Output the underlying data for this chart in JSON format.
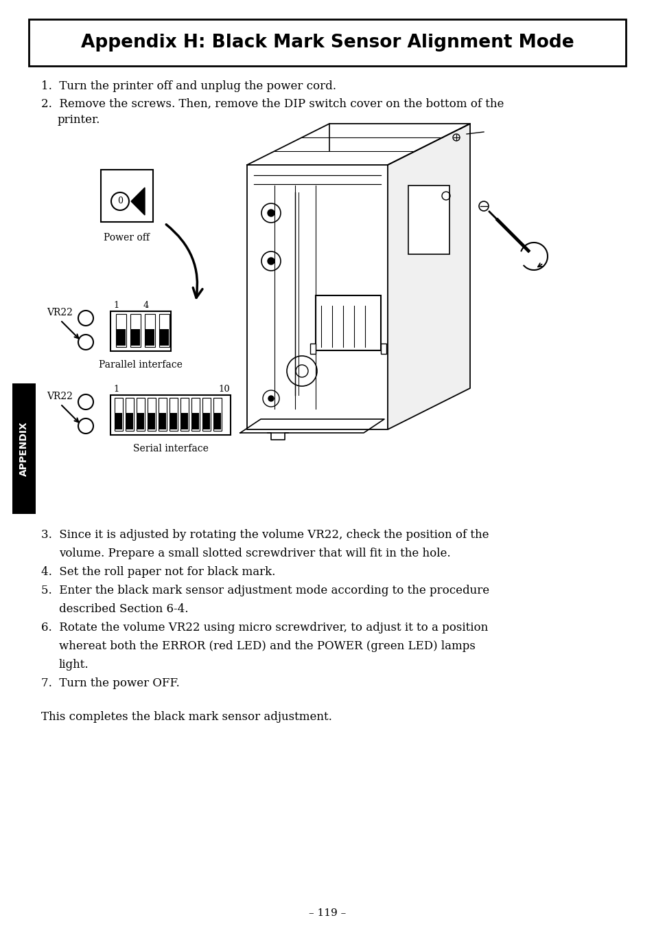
{
  "title": "Appendix H: Black Mark Sensor Alignment Mode",
  "bg_color": "#ffffff",
  "text_color": "#000000",
  "sidebar_text": "APPENDIX",
  "step1": "Turn the printer off and unplug the power cord.",
  "step2_a": "Remove the screws. Then, remove the DIP switch cover on the bottom of the",
  "step2_b": "printer.",
  "step3_a": "Since it is adjusted by rotating the volume VR22, check the position of the",
  "step3_b": "volume. Prepare a small slotted screwdriver that will fit in the hole.",
  "step4": "Set the roll paper not for black mark.",
  "step5_a": "Enter the black mark sensor adjustment mode according to the procedure",
  "step5_b": "described Section 6-4.",
  "step6_a": "Rotate the volume VR22 using micro screwdriver, to adjust it to a position",
  "step6_b": "whereat both the ERROR (red LED) and the POWER (green LED) lamps",
  "step6_c": "light.",
  "step7": "Turn the power OFF.",
  "conclusion": "This completes the black mark sensor adjustment.",
  "page_number": "– 119 –",
  "label_power_off": "Power off",
  "label_parallel": "Parallel interface",
  "label_serial": "Serial interface",
  "label_vr22": "VR22",
  "label_1": "1",
  "label_4": "4",
  "label_10": "10"
}
